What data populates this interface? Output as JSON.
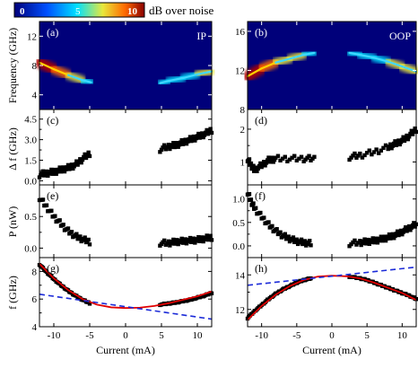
{
  "colorbar": {
    "ticks": [
      "0",
      "5",
      "10"
    ],
    "label": "dB over noise",
    "colors": [
      "#00007a",
      "#0050ff",
      "#00e0ff",
      "#e8e83c",
      "#ff6a00",
      "#8a0000"
    ]
  },
  "chart_data": [
    {
      "id": "a",
      "type": "heatmap",
      "panel_label": "(a)",
      "annotation": "IP",
      "ylabel": "Frequency (GHz)",
      "xlim": [
        -12,
        12
      ],
      "ylim": [
        2,
        14
      ],
      "yticks": [
        4,
        8,
        12
      ],
      "branches": [
        {
          "x": [
            -12,
            -10,
            -8,
            -6,
            -4.8
          ],
          "y": [
            8.4,
            7.5,
            6.7,
            6.0,
            5.7
          ],
          "intensity": [
            1.0,
            0.7,
            0.45,
            0.3,
            0.2
          ]
        },
        {
          "x": [
            4.8,
            6,
            8,
            10,
            12
          ],
          "y": [
            5.6,
            5.9,
            6.3,
            6.8,
            7.2
          ],
          "intensity": [
            0.25,
            0.3,
            0.35,
            0.4,
            0.45
          ]
        }
      ]
    },
    {
      "id": "b",
      "type": "heatmap",
      "panel_label": "(b)",
      "annotation": "OOP",
      "ylabel": "",
      "xlim": [
        -12,
        12
      ],
      "ylim": [
        8,
        17
      ],
      "yticks": [
        8,
        12,
        16
      ],
      "branches": [
        {
          "x": [
            -12,
            -10,
            -8,
            -6,
            -4,
            -2.5
          ],
          "y": [
            11.4,
            12.2,
            12.8,
            13.2,
            13.6,
            13.8
          ],
          "intensity": [
            1.0,
            0.7,
            0.5,
            0.4,
            0.3,
            0.25
          ]
        },
        {
          "x": [
            2.5,
            4,
            6,
            8,
            10,
            12
          ],
          "y": [
            13.8,
            13.6,
            13.3,
            12.9,
            12.4,
            11.9
          ],
          "intensity": [
            0.25,
            0.3,
            0.35,
            0.45,
            0.55,
            0.65
          ]
        }
      ]
    },
    {
      "id": "c",
      "type": "scatter",
      "panel_label": "(c)",
      "ylabel": "Δ f (GHz)",
      "xlim": [
        -12,
        12
      ],
      "ylim": [
        -0.3,
        5.2
      ],
      "yticks": [
        0.0,
        1.5,
        3.0,
        4.5
      ],
      "ytick_labels": [
        "0.0",
        "1.5",
        "3.0",
        "4.5"
      ],
      "minor_yticks": [
        0.75,
        2.25,
        3.75
      ],
      "segments": [
        {
          "x": [
            -12,
            -11,
            -10,
            -9,
            -8,
            -7,
            -6,
            -5
          ],
          "y": [
            0.45,
            0.55,
            0.65,
            0.8,
            0.95,
            1.15,
            1.6,
            2.0
          ]
        },
        {
          "x": [
            4.8,
            6,
            7,
            8,
            9,
            10,
            11,
            12
          ],
          "y": [
            2.3,
            2.5,
            2.6,
            2.8,
            3.0,
            3.2,
            3.4,
            3.7
          ]
        }
      ]
    },
    {
      "id": "d",
      "type": "scatter",
      "panel_label": "(d)",
      "ylabel": "",
      "xlim": [
        -12,
        12
      ],
      "ylim": [
        0.3,
        2.6
      ],
      "yticks": [
        1,
        2
      ],
      "ytick_labels": [
        "1",
        "2"
      ],
      "minor_yticks": [
        1.5
      ],
      "segments": [
        {
          "x": [
            -12,
            -11.5,
            -11,
            -10,
            -9,
            -8,
            -6,
            -4,
            -2.5
          ],
          "y": [
            1.1,
            0.9,
            0.75,
            0.9,
            1.05,
            1.1,
            1.1,
            1.1,
            1.1
          ]
        },
        {
          "x": [
            2.5,
            4,
            6,
            8,
            9,
            10,
            11,
            12
          ],
          "y": [
            1.15,
            1.2,
            1.3,
            1.45,
            1.55,
            1.65,
            1.8,
            2.0
          ]
        }
      ]
    },
    {
      "id": "e",
      "type": "scatter",
      "panel_label": "(e)",
      "ylabel": "P (nW)",
      "xlim": [
        -12,
        12
      ],
      "ylim": [
        -0.15,
        1.0
      ],
      "yticks": [
        0.0,
        0.5
      ],
      "ytick_labels": [
        "0.0",
        "0.5"
      ],
      "minor_yticks": [
        0.25,
        0.75
      ],
      "segments": [
        {
          "x": [
            -12,
            -11,
            -10,
            -9,
            -8,
            -7,
            -6,
            -5
          ],
          "y": [
            0.8,
            0.65,
            0.5,
            0.38,
            0.27,
            0.19,
            0.14,
            0.1
          ]
        },
        {
          "x": [
            4.8,
            6,
            7,
            8,
            9,
            10,
            11,
            12
          ],
          "y": [
            0.08,
            0.08,
            0.1,
            0.11,
            0.12,
            0.13,
            0.15,
            0.17
          ]
        }
      ]
    },
    {
      "id": "f",
      "type": "scatter",
      "panel_label": "(f)",
      "ylabel": "",
      "xlim": [
        -12,
        12
      ],
      "ylim": [
        -0.25,
        1.3
      ],
      "yticks": [
        0.0,
        0.5,
        1.0
      ],
      "ytick_labels": [
        "0.0",
        "0.5",
        "1.0"
      ],
      "minor_yticks": [
        0.25,
        0.75
      ],
      "segments": [
        {
          "x": [
            -12,
            -11.5,
            -11,
            -10,
            -9,
            -8,
            -7,
            -6,
            -5,
            -4,
            -3
          ],
          "y": [
            1.15,
            0.95,
            0.8,
            0.62,
            0.45,
            0.32,
            0.22,
            0.15,
            0.1,
            0.07,
            0.05
          ]
        },
        {
          "x": [
            2.5,
            4,
            5,
            6,
            7,
            8,
            9,
            10,
            11,
            12
          ],
          "y": [
            0.05,
            0.07,
            0.09,
            0.11,
            0.14,
            0.18,
            0.23,
            0.3,
            0.38,
            0.46
          ]
        }
      ]
    },
    {
      "id": "g",
      "type": "scatter",
      "panel_label": "(g)",
      "ylabel": "f (GHz)",
      "xlabel": "Current (mA)",
      "xlim": [
        -12,
        12
      ],
      "ylim": [
        4,
        9
      ],
      "yticks": [
        4,
        6,
        8
      ],
      "ytick_labels": [
        "4",
        "6",
        "8"
      ],
      "minor_yticks": [
        5,
        7
      ],
      "xticks": [
        -10,
        -5,
        0,
        5,
        10
      ],
      "xtick_labels": [
        "-10",
        "-5",
        "0",
        "5",
        "10"
      ],
      "segments": [
        {
          "x": [
            -12,
            -11,
            -10,
            -9,
            -8,
            -7,
            -6,
            -5
          ],
          "y": [
            8.5,
            7.95,
            7.45,
            7.0,
            6.6,
            6.25,
            5.95,
            5.7
          ]
        },
        {
          "x": [
            4.8,
            6,
            7,
            8,
            9,
            10,
            11,
            12
          ],
          "y": [
            5.6,
            5.68,
            5.75,
            5.85,
            5.95,
            6.1,
            6.25,
            6.45
          ]
        }
      ],
      "fit_curve": {
        "x": [
          -12,
          -10,
          -8,
          -6,
          -4,
          -2,
          0,
          2,
          4,
          6,
          8,
          10,
          12
        ],
        "y": [
          8.55,
          7.5,
          6.65,
          6.0,
          5.6,
          5.4,
          5.35,
          5.38,
          5.5,
          5.7,
          5.95,
          6.2,
          6.55
        ],
        "color": "#e00000"
      },
      "tangent_line": {
        "x": [
          -12,
          12
        ],
        "y": [
          6.35,
          4.55
        ],
        "color": "#1c2bd8"
      }
    },
    {
      "id": "h",
      "type": "scatter",
      "panel_label": "(h)",
      "ylabel": "",
      "xlabel": "Current (mA)",
      "xlim": [
        -12,
        12
      ],
      "ylim": [
        11,
        15
      ],
      "yticks": [
        12,
        14
      ],
      "ytick_labels": [
        "12",
        "14"
      ],
      "minor_yticks": [
        13
      ],
      "xticks": [
        -10,
        -5,
        0,
        5,
        10
      ],
      "xtick_labels": [
        "-10",
        "-5",
        "0",
        "5",
        "10"
      ],
      "segments": [
        {
          "x": [
            -12,
            -11,
            -10,
            -9,
            -8,
            -7,
            -6,
            -5,
            -4,
            -3
          ],
          "y": [
            11.5,
            11.9,
            12.25,
            12.6,
            12.9,
            13.15,
            13.35,
            13.55,
            13.7,
            13.8
          ]
        },
        {
          "x": [
            2.5,
            4,
            5,
            6,
            7,
            8,
            9,
            10,
            11,
            12
          ],
          "y": [
            13.9,
            13.8,
            13.7,
            13.55,
            13.4,
            13.25,
            13.1,
            12.95,
            12.8,
            12.6
          ]
        }
      ],
      "fit_curve": {
        "x": [
          -12,
          -10,
          -8,
          -6,
          -4,
          -2,
          0,
          2,
          4,
          6,
          8,
          10,
          12
        ],
        "y": [
          11.4,
          12.2,
          12.85,
          13.35,
          13.7,
          13.9,
          13.95,
          13.92,
          13.8,
          13.55,
          13.25,
          12.95,
          12.55
        ],
        "color": "#e00000"
      },
      "tangent_line": {
        "x": [
          -12,
          12
        ],
        "y": [
          13.4,
          14.45
        ],
        "color": "#1c2bd8"
      }
    }
  ]
}
